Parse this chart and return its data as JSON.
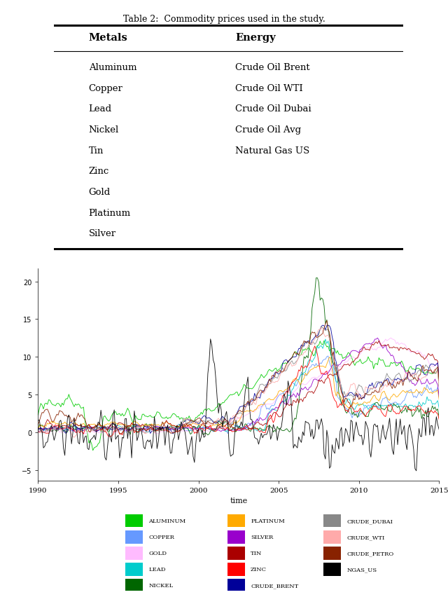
{
  "table_title": "Table 2:  Commodity prices used in the study.",
  "metals": [
    "Aluminum",
    "Copper",
    "Lead",
    "Nickel",
    "Tin",
    "Zinc",
    "Gold",
    "Platinum",
    "Silver"
  ],
  "energy": [
    "Crude Oil Brent",
    "Crude Oil WTI",
    "Crude Oil Dubai",
    "Crude Oil Avg",
    "Natural Gas US"
  ],
  "series_colors": {
    "ALUMINUM": "#00cc00",
    "COPPER": "#6699ff",
    "GOLD": "#ffbbff",
    "LEAD": "#00cccc",
    "NICKEL": "#006600",
    "PLATINUM": "#ffaa00",
    "SILVER": "#9900cc",
    "TIN": "#aa0000",
    "ZINC": "#ff0000",
    "CRUDE_BRENT": "#000099",
    "CRUDE_DUBAI": "#888888",
    "CRUDE_WTI": "#ffaaaa",
    "CRUDE_PETRO": "#882200",
    "NGAS_US": "#000000"
  },
  "legend_order": [
    [
      "ALUMINUM",
      "PLATINUM",
      "CRUDE_DUBAI"
    ],
    [
      "COPPER",
      "SILVER",
      "CRUDE_WTI"
    ],
    [
      "GOLD",
      "TIN",
      "CRUDE_PETRO"
    ],
    [
      "LEAD",
      "ZINC",
      "NGAS_US"
    ],
    [
      "NICKEL",
      "CRUDE_BRENT",
      ""
    ]
  ],
  "xlabel": "time",
  "year_start": 1990,
  "year_end": 2015
}
